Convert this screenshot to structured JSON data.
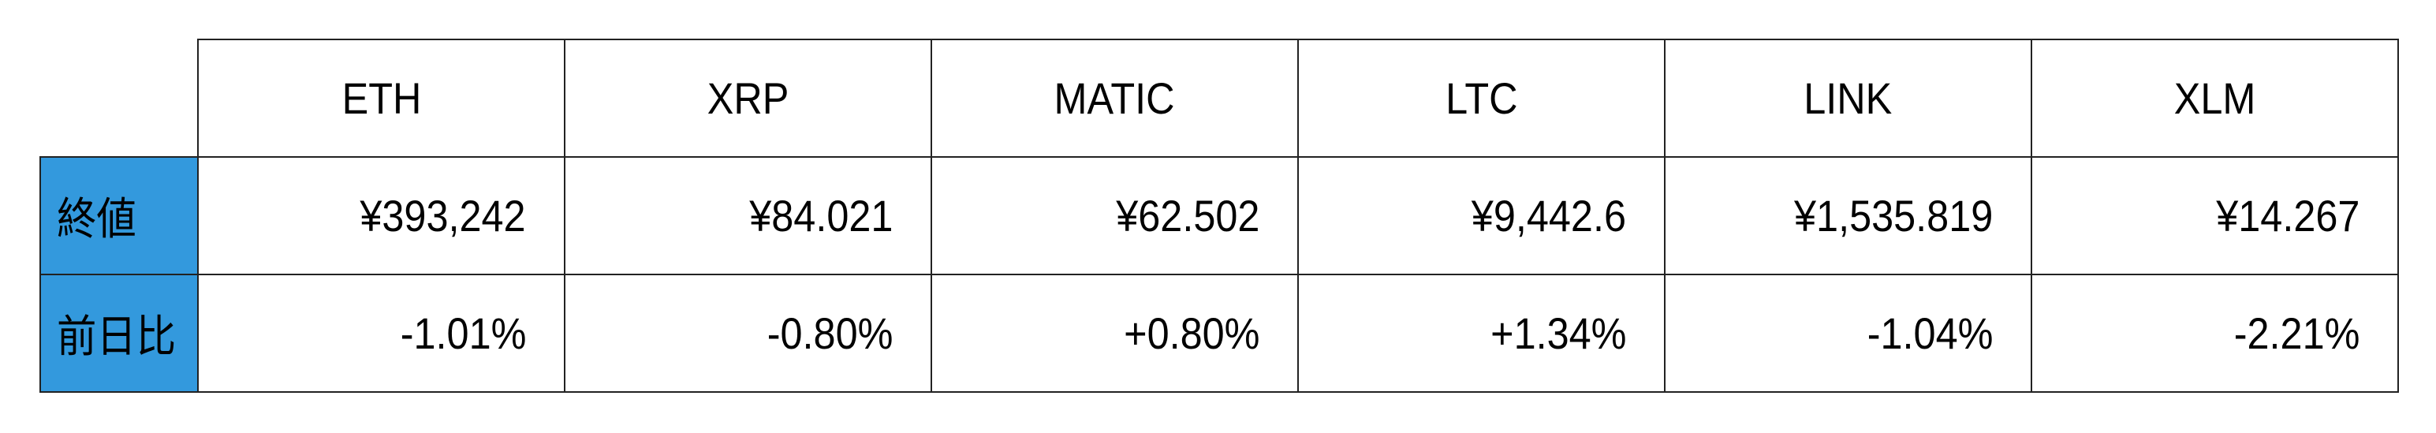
{
  "table": {
    "columns": [
      "ETH",
      "XRP",
      "MATIC",
      "LTC",
      "LINK",
      "XLM"
    ],
    "rows": [
      {
        "label": "終値",
        "values": [
          "¥393,242",
          "¥84.021",
          "¥62.502",
          "¥9,442.6",
          "¥1,535.819",
          "¥14.267"
        ]
      },
      {
        "label": "前日比",
        "values": [
          "-1.01%",
          "-0.80%",
          "+0.80%",
          "+1.34%",
          "-1.04%",
          "-2.21%"
        ]
      }
    ]
  },
  "colors": {
    "row_label_bg": "#3399dd",
    "border": "#222222"
  }
}
